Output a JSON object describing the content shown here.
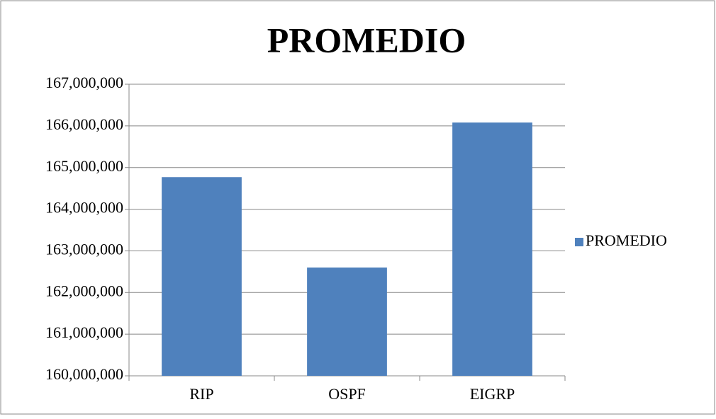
{
  "chart_data": {
    "type": "bar",
    "title": "PROMEDIO",
    "categories": [
      "RIP",
      "OSPF",
      "EIGRP"
    ],
    "series": [
      {
        "name": "PROMEDIO",
        "color": "#4f81bd",
        "values": [
          164770000,
          162600000,
          166080000
        ]
      }
    ],
    "ylim": [
      160000000,
      167000000
    ],
    "yticks": [
      {
        "value": 160000000,
        "label": "160,000,000"
      },
      {
        "value": 161000000,
        "label": "161,000,000"
      },
      {
        "value": 162000000,
        "label": "162,000,000"
      },
      {
        "value": 163000000,
        "label": "163,000,000"
      },
      {
        "value": 164000000,
        "label": "164,000,000"
      },
      {
        "value": 165000000,
        "label": "165,000,000"
      },
      {
        "value": 166000000,
        "label": "166,000,000"
      },
      {
        "value": 167000000,
        "label": "167,000,000"
      }
    ],
    "grid": true,
    "legend": "right"
  }
}
